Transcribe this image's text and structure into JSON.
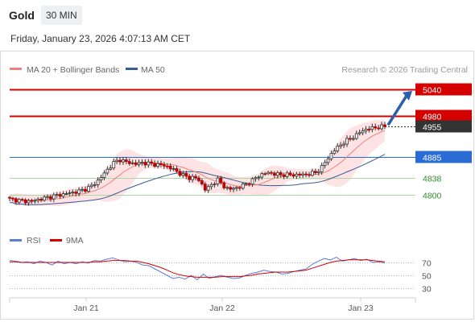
{
  "header": {
    "instrument": "Gold",
    "timeframe": "30 MIN",
    "datetime": "Friday, January 23, 2026 4:07:13 AM CET"
  },
  "legend": {
    "ma20_label": "MA 20 + Bollinger Bands",
    "ma50_label": "MA 50",
    "credit": "Research © 2026 Trading Central"
  },
  "rsi_legend": {
    "rsi_label": "RSI",
    "ma9_label": "9MA"
  },
  "colors": {
    "resistance": "#d40000",
    "pivot": "#2b6cd4",
    "support": "#4caf50",
    "last": "#333333",
    "ma20": "#f08080",
    "ma50": "#3a5a9a",
    "band_fill": "#fde3e3",
    "candle_up": "#ffffff",
    "candle_down": "#c20000",
    "rsi": "#5b7fd6",
    "rsi_ma": "#d40000",
    "arrow": "#2a5fad"
  },
  "chart_data": [
    {
      "type": "candlestick",
      "title": "Gold",
      "timeframe": "30 MIN",
      "x_labels": [
        "Jan 21",
        "Jan 22",
        "Jan 23"
      ],
      "ylim": [
        4730,
        5060
      ],
      "levels": [
        {
          "value": 5040,
          "label": "5040",
          "kind": "resistance"
        },
        {
          "value": 4980,
          "label": "4980",
          "kind": "resistance"
        },
        {
          "value": 4955,
          "label": "4955",
          "kind": "last"
        },
        {
          "value": 4885,
          "label": "4885",
          "kind": "pivot"
        },
        {
          "value": 4838,
          "label": "4838",
          "kind": "support"
        },
        {
          "value": 4800,
          "label": "4800",
          "kind": "support"
        }
      ],
      "series": [
        {
          "name": "MA 20 + Bollinger Bands",
          "kind": "ma20"
        },
        {
          "name": "MA 50",
          "kind": "ma50"
        }
      ],
      "price_path": [
        4790,
        4788,
        4786,
        4785,
        4786,
        4789,
        4792,
        4795,
        4798,
        4800,
        4803,
        4805,
        4808,
        4812,
        4818,
        4828,
        4842,
        4858,
        4872,
        4880,
        4875,
        4872,
        4870,
        4873,
        4871,
        4869,
        4868,
        4866,
        4860,
        4852,
        4845,
        4838,
        4840,
        4830,
        4810,
        4823,
        4835,
        4820,
        4812,
        4815,
        4818,
        4825,
        4832,
        4842,
        4848,
        4850,
        4847,
        4845,
        4846,
        4844,
        4846,
        4845,
        4848,
        4850,
        4862,
        4880,
        4898,
        4910,
        4920,
        4928,
        4935,
        4945,
        4950,
        4952,
        4954,
        4955
      ],
      "projection": {
        "from": 4955,
        "to": 5040
      }
    },
    {
      "type": "line",
      "title": "RSI",
      "ylim": [
        20,
        90
      ],
      "levels": [
        70,
        50,
        30
      ],
      "series": [
        {
          "name": "RSI",
          "kind": "rsi",
          "values": [
            73,
            72,
            70,
            71,
            68,
            72,
            70,
            66,
            72,
            68,
            70,
            68,
            71,
            69,
            73,
            72,
            75,
            77,
            74,
            71,
            72,
            70,
            66,
            65,
            60,
            55,
            50,
            45,
            47,
            44,
            50,
            43,
            52,
            45,
            48,
            50,
            47,
            45,
            46,
            50,
            53,
            55,
            58,
            56,
            55,
            52,
            53,
            56,
            58,
            60,
            67,
            72,
            76,
            74,
            78,
            72,
            74,
            76,
            73,
            75,
            70,
            71,
            69
          ]
        },
        {
          "name": "9MA",
          "kind": "rsi_ma",
          "values": [
            71,
            71,
            70,
            70,
            70,
            70,
            70,
            70,
            70,
            70,
            70,
            70,
            70,
            70,
            71,
            71,
            72,
            73,
            73,
            73,
            72,
            72,
            70,
            68,
            65,
            62,
            58,
            54,
            51,
            49,
            48,
            47,
            47,
            47,
            47,
            48,
            48,
            48,
            48,
            49,
            50,
            52,
            53,
            54,
            55,
            55,
            55,
            56,
            57,
            58,
            61,
            64,
            67,
            70,
            72,
            73,
            74,
            74,
            74,
            74,
            73,
            72,
            71
          ]
        }
      ]
    }
  ]
}
